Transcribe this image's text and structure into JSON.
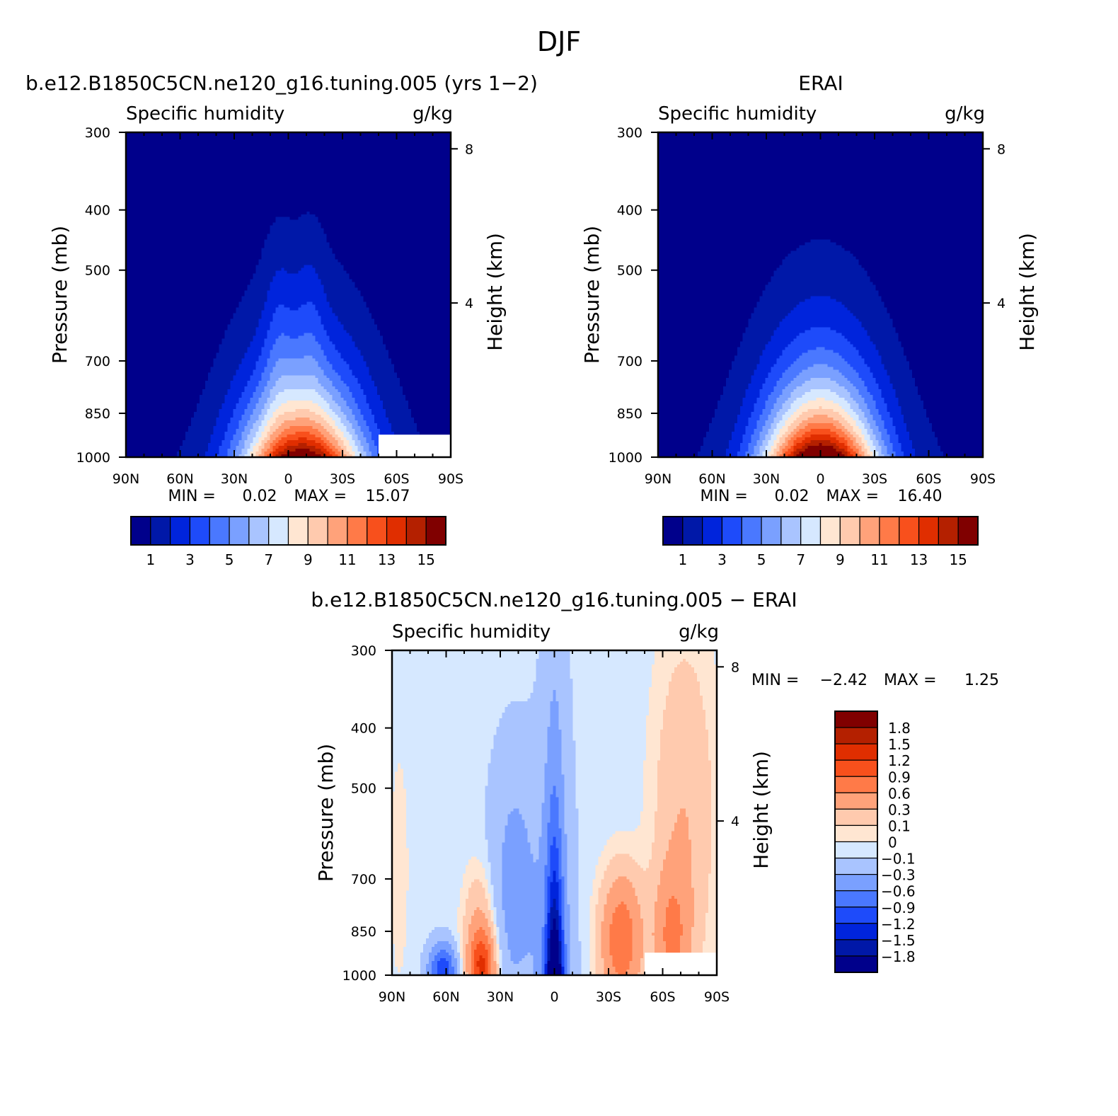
{
  "figure": {
    "title": "DJF"
  },
  "chart_data": [
    {
      "type": "heatmap",
      "title": "b.e12.B1850C5CN.ne120_g16.tuning.005 (yrs 1−2)",
      "left_label": "Specific humidity",
      "right_label": "g/kg",
      "xlabel": "",
      "ylabel": "Pressure (mb)",
      "y2label": "Height (km)",
      "x_ticks": [
        "90N",
        "60N",
        "30N",
        "0",
        "30S",
        "60S",
        "90S"
      ],
      "y_ticks": [
        "300",
        "400",
        "500",
        "700",
        "850",
        "1000"
      ],
      "y2_ticks": [
        "8",
        "4"
      ],
      "min_label": "MIN =",
      "min_value": "0.02",
      "max_label": "MAX =",
      "max_value": "15.07",
      "colorbar": {
        "orientation": "horizontal",
        "levels": [
          1,
          2,
          3,
          4,
          5,
          6,
          7,
          8,
          9,
          10,
          11,
          12,
          13,
          14,
          15
        ],
        "tick_labels": [
          "1",
          "3",
          "5",
          "7",
          "9",
          "11",
          "13",
          "15"
        ],
        "colors": [
          "#00008b",
          "#0018a8",
          "#0024dc",
          "#1e4bfa",
          "#4a78ff",
          "#7aa0ff",
          "#a9c4ff",
          "#d6e8ff",
          "#ffe6d2",
          "#ffcaae",
          "#ffa27a",
          "#ff7a48",
          "#f8501c",
          "#e02e00",
          "#b42000",
          "#800000"
        ]
      },
      "field": {
        "peak_latitude": 10,
        "peak_value": 15.07,
        "missing_box": {
          "lat_from": 50,
          "lat_to": 90,
          "p_from": 920,
          "p_to": 1000
        }
      }
    },
    {
      "type": "heatmap",
      "title": "ERAI",
      "left_label": "Specific humidity",
      "right_label": "g/kg",
      "xlabel": "",
      "ylabel": "Pressure (mb)",
      "y2label": "Height (km)",
      "x_ticks": [
        "90N",
        "60N",
        "30N",
        "0",
        "30S",
        "60S",
        "90S"
      ],
      "y_ticks": [
        "300",
        "400",
        "500",
        "700",
        "850",
        "1000"
      ],
      "y2_ticks": [
        "8",
        "4"
      ],
      "min_label": "MIN =",
      "min_value": "0.02",
      "max_label": "MAX =",
      "max_value": "16.40",
      "colorbar": {
        "orientation": "horizontal",
        "levels": [
          1,
          2,
          3,
          4,
          5,
          6,
          7,
          8,
          9,
          10,
          11,
          12,
          13,
          14,
          15
        ],
        "tick_labels": [
          "1",
          "3",
          "5",
          "7",
          "9",
          "11",
          "13",
          "15"
        ],
        "colors": [
          "#00008b",
          "#0018a8",
          "#0024dc",
          "#1e4bfa",
          "#4a78ff",
          "#7aa0ff",
          "#a9c4ff",
          "#d6e8ff",
          "#ffe6d2",
          "#ffcaae",
          "#ffa27a",
          "#ff7a48",
          "#f8501c",
          "#e02e00",
          "#b42000",
          "#800000"
        ]
      },
      "field": {
        "peak_latitude": 0,
        "peak_value": 16.4
      }
    },
    {
      "type": "heatmap",
      "title": "b.e12.B1850C5CN.ne120_g16.tuning.005 − ERAI",
      "left_label": "Specific humidity",
      "right_label": "g/kg",
      "xlabel": "",
      "ylabel": "Pressure (mb)",
      "y2label": "Height (km)",
      "x_ticks": [
        "90N",
        "60N",
        "30N",
        "0",
        "30S",
        "60S",
        "90S"
      ],
      "y_ticks": [
        "300",
        "400",
        "500",
        "700",
        "850",
        "1000"
      ],
      "y2_ticks": [
        "8",
        "4"
      ],
      "min_label": "MIN =",
      "min_value": "−2.42",
      "max_label": "MAX =",
      "max_value": "1.25",
      "colorbar": {
        "orientation": "vertical",
        "levels": [
          -1.8,
          -1.5,
          -1.2,
          -0.9,
          -0.6,
          -0.3,
          -0.1,
          0,
          0.1,
          0.3,
          0.6,
          0.9,
          1.2,
          1.5,
          1.8
        ],
        "tick_labels": [
          "−1.8",
          "−1.5",
          "−1.2",
          "−0.9",
          "−0.6",
          "−0.3",
          "−0.1",
          "0",
          "0.1",
          "0.3",
          "0.6",
          "0.9",
          "1.2",
          "1.5",
          "1.8"
        ],
        "colors": [
          "#00008b",
          "#0018a8",
          "#0024dc",
          "#1e4bfa",
          "#4a78ff",
          "#7aa0ff",
          "#a9c4ff",
          "#d6e8ff",
          "#ffe6d2",
          "#ffcaae",
          "#ffa27a",
          "#ff7a48",
          "#f8501c",
          "#e02e00",
          "#b42000",
          "#800000"
        ]
      },
      "field": {
        "min_latitude": 0,
        "min_value": -2.42,
        "max_value": 1.25,
        "missing_box": {
          "lat_from": 50,
          "lat_to": 90,
          "p_from": 920,
          "p_to": 1000
        }
      }
    }
  ]
}
